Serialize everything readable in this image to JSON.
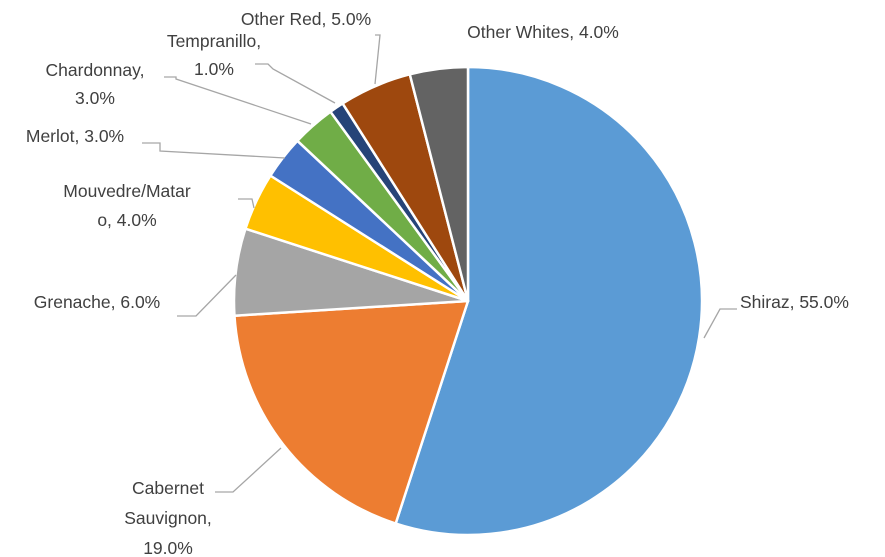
{
  "chart_data": {
    "type": "pie",
    "title": "",
    "start_angle_deg": 0,
    "direction": "clockwise",
    "slices": [
      {
        "label": "Shiraz",
        "value": 55.0,
        "display": "55.0%",
        "color": "#5b9bd5",
        "text_lines": [
          "Shiraz, 55.0%"
        ]
      },
      {
        "label": "Cabernet Sauvignon",
        "value": 19.0,
        "display": "19.0%",
        "color": "#ed7d31",
        "text_lines": [
          "Cabernet",
          "Sauvignon,",
          "19.0%"
        ]
      },
      {
        "label": "Grenache",
        "value": 6.0,
        "display": "6.0%",
        "color": "#a5a5a5",
        "text_lines": [
          "Grenache, 6.0%"
        ]
      },
      {
        "label": "Mouvedre/Mataro",
        "value": 4.0,
        "display": "4.0%",
        "color": "#ffc000",
        "text_lines": [
          "Mouvedre/Matar",
          "o, 4.0%"
        ]
      },
      {
        "label": "Merlot",
        "value": 3.0,
        "display": "3.0%",
        "color": "#4472c4",
        "text_lines": [
          "Merlot, 3.0%"
        ]
      },
      {
        "label": "Chardonnay",
        "value": 3.0,
        "display": "3.0%",
        "color": "#70ad47",
        "text_lines": [
          "Chardonnay,",
          "3.0%"
        ]
      },
      {
        "label": "Tempranillo",
        "value": 1.0,
        "display": "1.0%",
        "color": "#264478",
        "text_lines": [
          "Tempranillo,",
          "1.0%"
        ]
      },
      {
        "label": "Other Red",
        "value": 5.0,
        "display": "5.0%",
        "color": "#9e480e",
        "text_lines": [
          "Other Red, 5.0%"
        ]
      },
      {
        "label": "Other Whites",
        "value": 4.0,
        "display": "4.0%",
        "color": "#636363",
        "text_lines": [
          "Other Whites, 4.0%"
        ]
      }
    ]
  }
}
